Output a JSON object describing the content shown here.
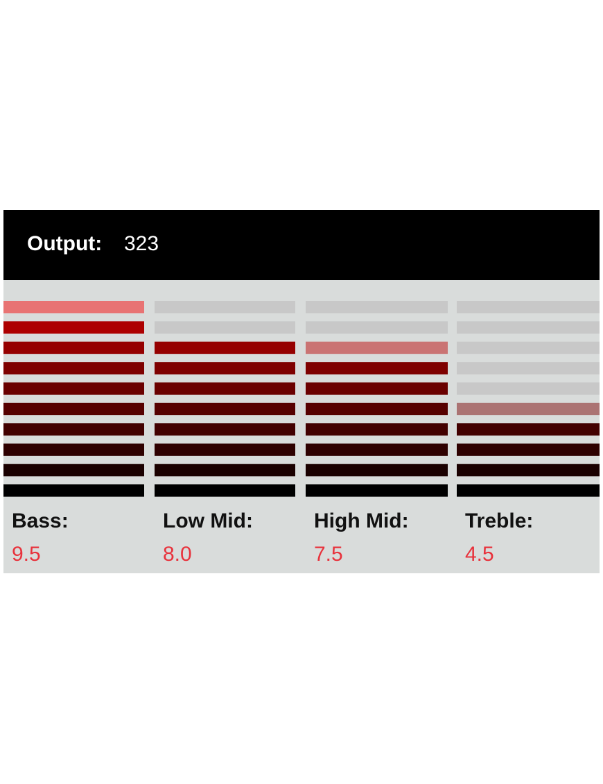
{
  "output": {
    "label": "Output:",
    "value": 323
  },
  "bands": [
    {
      "name": "Bass:",
      "value": "9.5"
    },
    {
      "name": "Low Mid:",
      "value": "8.0"
    },
    {
      "name": "High Mid:",
      "value": "7.5"
    },
    {
      "name": "Treble:",
      "value": "4.5"
    }
  ]
}
